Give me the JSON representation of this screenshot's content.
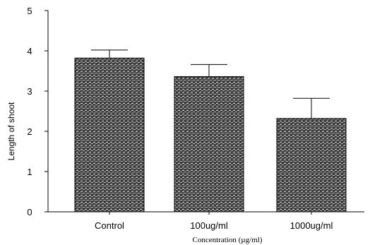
{
  "chart_data": {
    "type": "bar",
    "title": "",
    "xlabel": "Concentration (µg/ml)",
    "ylabel": "Length of shoot",
    "categories": [
      "Control",
      "100ug/ml",
      "1000ug/ml"
    ],
    "values": [
      3.82,
      3.36,
      2.32
    ],
    "error_upper": [
      0.2,
      0.3,
      0.5
    ],
    "ylim": [
      0,
      5
    ],
    "yticks": [
      "0",
      "1",
      "2",
      "3",
      "4",
      "5"
    ],
    "grid": false,
    "bar_fill": "#4a4a4a",
    "bar_pattern_light": "#d8d8d8",
    "axis_color": "#000000"
  }
}
